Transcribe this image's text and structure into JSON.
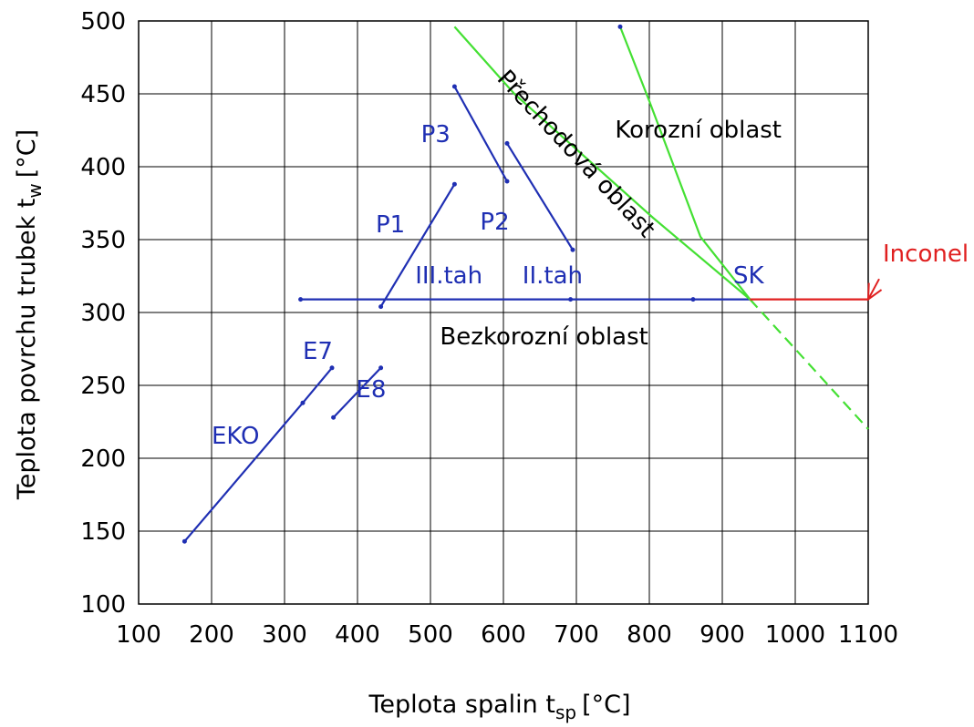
{
  "chart_data": {
    "type": "line",
    "xlabel": "Teplota spalin t",
    "xlabel_sub": "sp",
    "xlabel_unit": "[°C]",
    "ylabel": "Teplota povrchu trubek t",
    "ylabel_sub": "w",
    "ylabel_unit": "[°C]",
    "xlim": [
      100,
      1100
    ],
    "ylim": [
      100,
      500
    ],
    "grid": true,
    "x_ticks": [
      100,
      200,
      300,
      400,
      500,
      600,
      700,
      800,
      900,
      1000,
      1100
    ],
    "y_ticks": [
      100,
      150,
      200,
      250,
      300,
      350,
      400,
      450,
      500
    ],
    "colors": {
      "blue": "#1f2fb3",
      "green": "#44e033",
      "red": "#e02020",
      "grid": "#000000"
    },
    "series": [
      {
        "name": "EKO",
        "color": "blue",
        "points": [
          [
            163,
            143
          ],
          [
            325,
            238
          ],
          [
            365,
            262
          ]
        ]
      },
      {
        "name": "E8",
        "color": "blue",
        "points": [
          [
            367,
            228
          ],
          [
            432,
            262
          ]
        ]
      },
      {
        "name": "P1",
        "color": "blue",
        "points": [
          [
            432,
            304
          ],
          [
            533,
            388
          ]
        ]
      },
      {
        "name": "P3",
        "color": "blue",
        "points": [
          [
            533,
            455
          ],
          [
            605,
            390
          ]
        ]
      },
      {
        "name": "P2",
        "color": "blue",
        "points": [
          [
            605,
            416
          ],
          [
            695,
            343
          ]
        ]
      },
      {
        "name": "",
        "color": "blue",
        "points": [
          [
            322,
            309
          ],
          [
            692,
            309
          ],
          [
            860,
            309
          ],
          [
            938,
            309
          ]
        ]
      },
      {
        "name": "",
        "color": "green",
        "points": [
          [
            533,
            496
          ],
          [
            615,
            450
          ],
          [
            805,
            365
          ],
          [
            938,
            309
          ]
        ]
      },
      {
        "name": "",
        "color": "green",
        "points": [
          [
            760,
            496
          ],
          [
            800,
            445
          ],
          [
            870,
            352
          ],
          [
            938,
            309
          ]
        ]
      },
      {
        "name": "",
        "color": "green",
        "dashed": true,
        "points": [
          [
            938,
            309
          ],
          [
            1100,
            220
          ]
        ]
      },
      {
        "name": "Inconel",
        "color": "red",
        "points": [
          [
            938,
            309
          ],
          [
            1100,
            309
          ]
        ]
      }
    ],
    "markers": [
      [
        322,
        309
      ],
      [
        432,
        304
      ],
      [
        533,
        388
      ],
      [
        533,
        455
      ],
      [
        605,
        390
      ],
      [
        605,
        416
      ],
      [
        695,
        343
      ],
      [
        692,
        309
      ],
      [
        860,
        309
      ],
      [
        163,
        143
      ],
      [
        325,
        238
      ],
      [
        365,
        262
      ],
      [
        367,
        228
      ],
      [
        432,
        262
      ],
      [
        760,
        496
      ]
    ],
    "arrow": {
      "color": "red",
      "tip": [
        1100,
        309
      ],
      "from": [
        1115,
        323
      ]
    },
    "annotations": [
      {
        "text": "EKO",
        "x": 200,
        "y": 210,
        "color": "blue"
      },
      {
        "text": "E7",
        "x": 325,
        "y": 268,
        "color": "blue"
      },
      {
        "text": "E8",
        "x": 398,
        "y": 242,
        "color": "blue"
      },
      {
        "text": "P1",
        "x": 425,
        "y": 355,
        "color": "blue"
      },
      {
        "text": "P3",
        "x": 487,
        "y": 417,
        "color": "blue"
      },
      {
        "text": "P2",
        "x": 568,
        "y": 357,
        "color": "blue"
      },
      {
        "text": "III.tah",
        "x": 479,
        "y": 320,
        "color": "blue"
      },
      {
        "text": "II.tah",
        "x": 626,
        "y": 320,
        "color": "blue"
      },
      {
        "text": "SK",
        "x": 915,
        "y": 320,
        "color": "blue"
      },
      {
        "text": "Inconel",
        "x": 1120,
        "y": 335,
        "color": "red"
      },
      {
        "text": "Bezkorozní oblast",
        "x": 513,
        "y": 278,
        "color": "black"
      },
      {
        "text": "Korozní oblast",
        "x": 753,
        "y": 420,
        "color": "black"
      },
      {
        "text": "Přechodová oblast",
        "x": 590,
        "y": 460,
        "color": "black",
        "rotate": 47
      }
    ]
  }
}
